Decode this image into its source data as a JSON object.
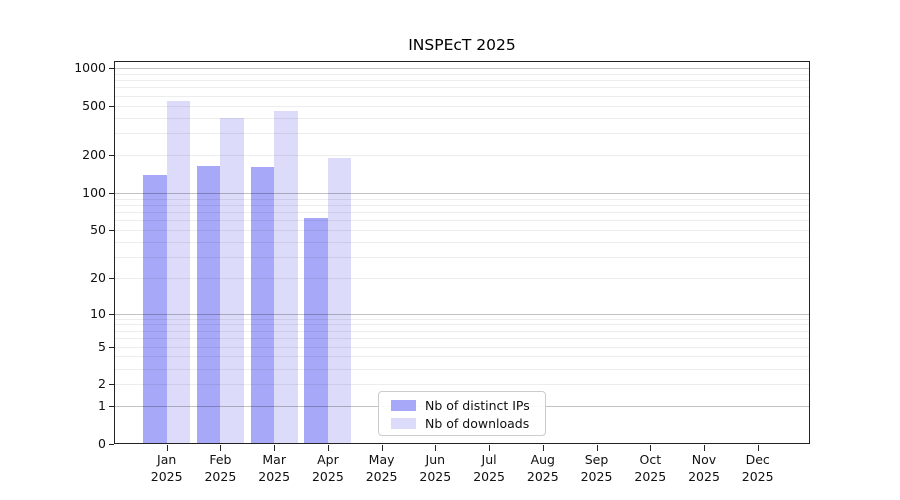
{
  "title": "INSPEcT 2025",
  "legend": {
    "items": [
      {
        "label": "Nb of distinct IPs",
        "color": "#a8a8f8"
      },
      {
        "label": "Nb of downloads",
        "color": "#dcdcfa"
      }
    ]
  },
  "chart_data": {
    "type": "bar",
    "title": "INSPEcT 2025",
    "categories": [
      "Jan 2025",
      "Feb 2025",
      "Mar 2025",
      "Apr 2025",
      "May 2025",
      "Jun 2025",
      "Jul 2025",
      "Aug 2025",
      "Sep 2025",
      "Oct 2025",
      "Nov 2025",
      "Dec 2025"
    ],
    "series": [
      {
        "name": "Nb of distinct IPs",
        "color": "#a8a8f8",
        "values": [
          140,
          165,
          162,
          63,
          null,
          null,
          null,
          null,
          null,
          null,
          null,
          null
        ]
      },
      {
        "name": "Nb of downloads",
        "color": "#dcdcfa",
        "values": [
          550,
          400,
          455,
          190,
          null,
          null,
          null,
          null,
          null,
          null,
          null,
          null
        ]
      }
    ],
    "xlabel": "",
    "ylabel": "",
    "yscale": "log1p",
    "ylim": [
      0,
      1130
    ],
    "yticks": [
      0,
      1,
      2,
      5,
      10,
      20,
      50,
      100,
      200,
      500,
      1000
    ],
    "yticks_major_grid": [
      1,
      10,
      100,
      1000
    ],
    "yticks_minor_grid": [
      2,
      3,
      4,
      5,
      6,
      7,
      8,
      9,
      20,
      30,
      40,
      50,
      60,
      70,
      80,
      90,
      200,
      300,
      400,
      500,
      600,
      700,
      800,
      900
    ],
    "grid": true,
    "legend_position": "inside-lower-center"
  }
}
